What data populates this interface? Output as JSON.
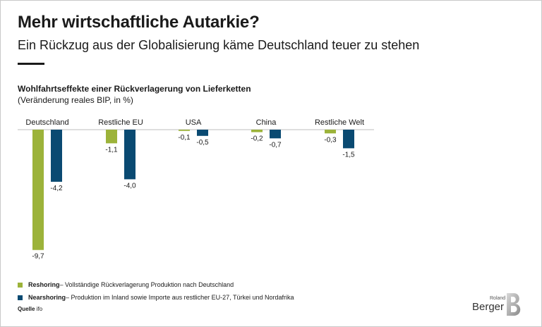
{
  "header": {
    "title": "Mehr wirtschaftliche Autarkie?",
    "subtitle": "Ein Rückzug aus der Globalisierung käme Deutschland teuer zu stehen"
  },
  "chart_data": {
    "type": "bar",
    "title": "Wohlfahrtseffekte einer Rückverlagerung von Lieferketten",
    "subtitle": "(Veränderung reales BIP, in %)",
    "categories": [
      "Deutschland",
      "Restliche EU",
      "USA",
      "China",
      "Restliche Welt"
    ],
    "series": [
      {
        "name": "Reshoring",
        "color": "#9cb33a",
        "values": [
          -9.7,
          -1.1,
          -0.1,
          -0.2,
          -0.3
        ],
        "labels": [
          "-9,7",
          "-1,1",
          "-0,1",
          "-0,2",
          "-0,3"
        ]
      },
      {
        "name": "Nearshoring",
        "color": "#0a4a72",
        "values": [
          -4.2,
          -4.0,
          -0.5,
          -0.7,
          -1.5
        ],
        "labels": [
          "-4,2",
          "-4,0",
          "-0,5",
          "-0,7",
          "-1,5"
        ]
      }
    ],
    "ylim": [
      -10,
      0
    ],
    "grid": false
  },
  "legend": {
    "items": [
      {
        "name": "Reshoring",
        "text": " – Vollständige Rückverlagerung Produktion nach Deutschland",
        "color": "#9cb33a"
      },
      {
        "name": "Nearshoring",
        "text": " – Produktion im Inland sowie Importe aus restlicher EU-27, Türkei und Nordafrika",
        "color": "#0a4a72"
      }
    ]
  },
  "source": {
    "label": "Quelle",
    "value": " ifo"
  },
  "logo": {
    "roland": "Roland",
    "berger": "Berger"
  }
}
